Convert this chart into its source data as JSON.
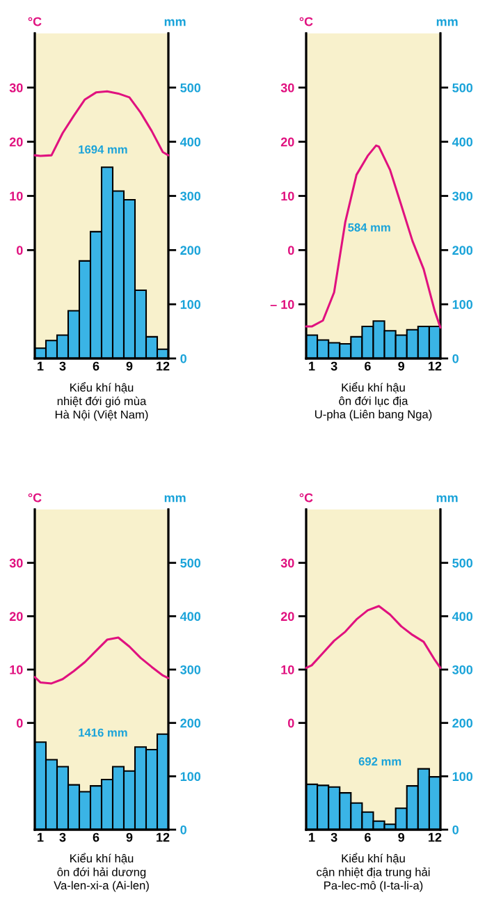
{
  "chart_data": [
    {
      "type": "bar",
      "title": "Kiểu khí hậu\nnhiệt đới gió mùa\nHà Nội (Việt Nam)",
      "ylabel": "°C",
      "y2label": "mm",
      "annotations": [
        "1694 mm"
      ],
      "x": [
        1,
        2,
        3,
        4,
        5,
        6,
        7,
        8,
        9,
        10,
        11,
        12
      ],
      "xlim": [
        0.5,
        12.5
      ],
      "xticks": [
        1,
        3,
        6,
        9,
        12
      ],
      "ylim": [
        -20,
        40
      ],
      "yticks": [
        0,
        10,
        20,
        30
      ],
      "y2lim": [
        0,
        600
      ],
      "y2ticks": [
        0,
        100,
        200,
        300,
        400,
        500
      ],
      "grid": false,
      "series": [
        {
          "axis": "y2",
          "color": "#3ab4e6",
          "values": [
            19,
            33,
            43,
            88,
            180,
            234,
            353,
            309,
            293,
            126,
            40,
            17
          ]
        },
        {
          "type": "line",
          "color": "#e0117f",
          "x": [
            0.5,
            1,
            2,
            3,
            4,
            5,
            6,
            7,
            8,
            9,
            10,
            11,
            12,
            12.5
          ],
          "values": [
            17.5,
            17.4,
            17.5,
            21.6,
            24.8,
            27.8,
            29.1,
            29.3,
            28.9,
            28.2,
            25.4,
            22,
            18.1,
            17.5
          ]
        }
      ]
    },
    {
      "type": "bar",
      "title": "Kiểu khí hậu\nôn đới lục địa\nU-pha (Liên bang Nga)",
      "ylabel": "°C",
      "y2label": "mm",
      "annotations": [
        "584 mm"
      ],
      "x": [
        1,
        2,
        3,
        4,
        5,
        6,
        7,
        8,
        9,
        10,
        11,
        12
      ],
      "xlim": [
        0.5,
        12.5
      ],
      "xticks": [
        1,
        3,
        6,
        9,
        12
      ],
      "ylim": [
        -20,
        40
      ],
      "yticks": [
        {
          "value": -10,
          "label": "– 10"
        },
        0,
        10,
        20,
        30
      ],
      "y2lim": [
        0,
        600
      ],
      "y2ticks": [
        0,
        100,
        200,
        300,
        400,
        500
      ],
      "grid": false,
      "series": [
        {
          "axis": "y2",
          "color": "#3ab4e6",
          "values": [
            43,
            34,
            29,
            27,
            40,
            59,
            69,
            51,
            43,
            53,
            59,
            59
          ]
        },
        {
          "type": "line",
          "color": "#e0117f",
          "x": [
            0.5,
            1,
            2,
            3,
            4,
            5,
            6,
            6.75,
            7,
            8,
            9,
            10,
            11,
            12,
            12.5
          ],
          "values": [
            -14.1,
            -14.1,
            -13,
            -7.8,
            5.2,
            13.9,
            17.4,
            19.3,
            19.1,
            14.8,
            8.3,
            1.7,
            -3.5,
            -11.3,
            -14.3
          ]
        }
      ]
    },
    {
      "type": "bar",
      "title": "Kiểu khí hậu\nôn đới hải dương\nVa-len-xi-a (Ai-len)",
      "ylabel": "°C",
      "y2label": "mm",
      "annotations": [
        "1416 mm"
      ],
      "x": [
        1,
        2,
        3,
        4,
        5,
        6,
        7,
        8,
        9,
        10,
        11,
        12
      ],
      "xlim": [
        0.5,
        12.5
      ],
      "xticks": [
        1,
        3,
        6,
        9,
        12
      ],
      "ylim": [
        -20,
        40
      ],
      "yticks": [
        0,
        10,
        20,
        30
      ],
      "y2lim": [
        0,
        600
      ],
      "y2ticks": [
        0,
        100,
        200,
        300,
        400,
        500
      ],
      "grid": false,
      "series": [
        {
          "axis": "y2",
          "color": "#3ab4e6",
          "values": [
            164,
            131,
            118,
            84,
            71,
            82,
            94,
            118,
            110,
            155,
            150,
            179
          ]
        },
        {
          "type": "line",
          "color": "#e0117f",
          "x": [
            0.5,
            1,
            2,
            3,
            4,
            5,
            6,
            7,
            8,
            9,
            10,
            11,
            12,
            12.5
          ],
          "values": [
            8.6,
            7.6,
            7.4,
            8.2,
            9.7,
            11.4,
            13.5,
            15.6,
            16,
            14.3,
            12.2,
            10.5,
            8.9,
            8.4
          ]
        }
      ]
    },
    {
      "type": "bar",
      "title": "Kiểu khí hậu\ncận nhiệt địa trung hải\nPa-lec-mô (I-ta-li-a)",
      "ylabel": "°C",
      "y2label": "mm",
      "annotations": [
        "692 mm"
      ],
      "x": [
        1,
        2,
        3,
        4,
        5,
        6,
        7,
        8,
        9,
        10,
        11,
        12
      ],
      "xlim": [
        0.5,
        12.5
      ],
      "xticks": [
        1,
        3,
        6,
        9,
        12
      ],
      "ylim": [
        -20,
        40
      ],
      "yticks": [
        0,
        10,
        20,
        30
      ],
      "y2lim": [
        0,
        600
      ],
      "y2ticks": [
        0,
        100,
        200,
        300,
        400,
        500
      ],
      "grid": false,
      "series": [
        {
          "axis": "y2",
          "color": "#3ab4e6",
          "values": [
            85,
            83,
            80,
            69,
            50,
            33,
            16,
            10,
            40,
            82,
            114,
            99
          ]
        },
        {
          "type": "line",
          "color": "#e0117f",
          "x": [
            0.5,
            1,
            2,
            3,
            4,
            5,
            6,
            7,
            8,
            9,
            10,
            11,
            12,
            12.5
          ],
          "values": [
            10.3,
            10.8,
            13.1,
            15.4,
            17.1,
            19.4,
            21.1,
            21.9,
            20.3,
            18.1,
            16.5,
            15.2,
            11.8,
            10.3
          ]
        }
      ]
    }
  ]
}
